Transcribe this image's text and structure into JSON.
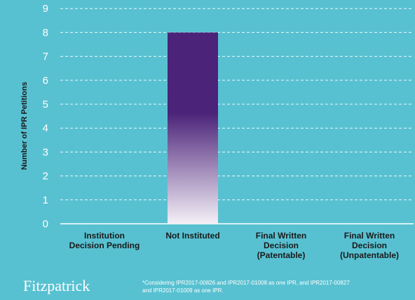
{
  "chart_data": {
    "type": "bar",
    "ylabel": "Number of IPR Petitions",
    "ylim": [
      0,
      9
    ],
    "yticks": [
      "0",
      "1",
      "2",
      "3",
      "4",
      "5",
      "6",
      "7",
      "8",
      "9"
    ],
    "grid": true,
    "categories": [
      [
        "Institution",
        "Decision Pending"
      ],
      [
        "Not Instituted"
      ],
      [
        "Final Written",
        "Decision",
        "(Patentable)"
      ],
      [
        "Final Written",
        "Decision",
        "(Unpatentable)"
      ]
    ],
    "values": [
      0,
      8,
      0,
      0
    ]
  },
  "logo": {
    "text": "Fitzpatrick"
  },
  "footnote": {
    "line1": "*Considering IPR2017-00826  and IPR2017-01008  as one IPR,  and IPR2017-00827",
    "line2": "and IPR2017-01009  as one IPR."
  },
  "colors": {
    "background": "#58c1d1",
    "bar_top": "#4b2379",
    "bar_bottom": "#f2eef6",
    "grid": "#ffffff",
    "tick_text": "#ffffff",
    "label_text": "#1a1a1a"
  }
}
